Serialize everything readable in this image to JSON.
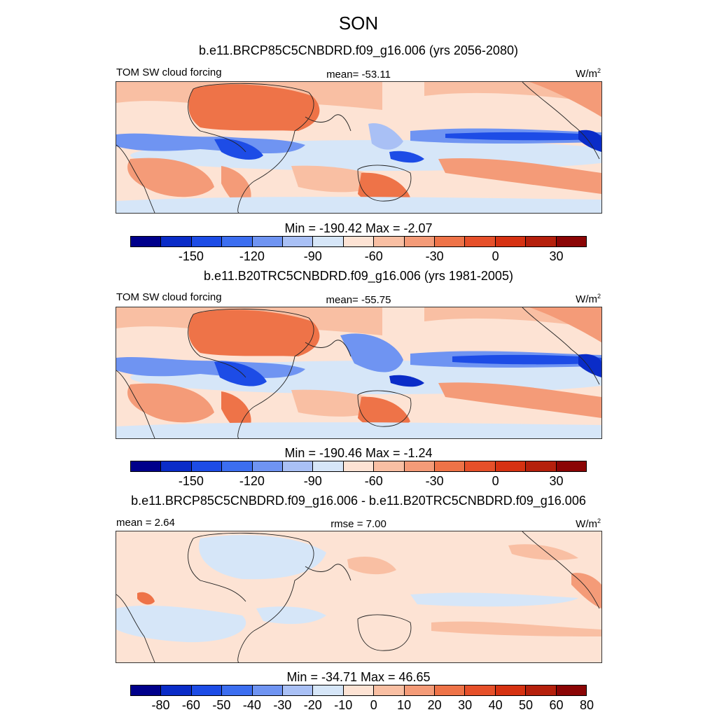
{
  "page_title": "SON",
  "panels": [
    {
      "title": "b.e11.BRCP85C5CNBDRD.f09_g16.006 (yrs 2056-2080)",
      "left_label": "TOM SW cloud forcing",
      "center_label": "mean= -53.11",
      "units": "W/m",
      "units_sup": "2",
      "minmax": "Min = -190.42 Max =  -2.07",
      "ticks": [
        "-150",
        "-120",
        "-90",
        "-60",
        "-30",
        "0",
        "30"
      ]
    },
    {
      "title": "b.e11.B20TRC5CNBDRD.f09_g16.006 (yrs 1981-2005)",
      "left_label": "TOM SW cloud forcing",
      "center_label": "mean= -55.75",
      "units": "W/m",
      "units_sup": "2",
      "minmax": "Min = -190.46 Max =  -1.24",
      "ticks": [
        "-150",
        "-120",
        "-90",
        "-60",
        "-30",
        "0",
        "30"
      ]
    },
    {
      "title": "b.e11.BRCP85C5CNBDRD.f09_g16.006 - b.e11.B20TRC5CNBDRD.f09_g16.006",
      "left_label": "mean =   2.64",
      "center_label": "rmse =   7.00",
      "units": "W/m",
      "units_sup": "2",
      "minmax": "Min = -34.71 Max =  46.65",
      "ticks": [
        "-80",
        "-60",
        "-50",
        "-40",
        "-30",
        "-20",
        "-10",
        "0",
        "10",
        "20",
        "30",
        "40",
        "50",
        "60",
        "80"
      ]
    }
  ],
  "colorbar_colors": [
    "#00008b",
    "#0a2cc8",
    "#1d4ce6",
    "#3c6ef0",
    "#6f94f2",
    "#a9c0f5",
    "#d6e6f8",
    "#fde3d4",
    "#f9bfa3",
    "#f49b78",
    "#ee7348",
    "#e6502a",
    "#d63212",
    "#b5200c",
    "#8b0505"
  ],
  "chart_data": [
    {
      "type": "heatmap",
      "title": "b.e11.BRCP85C5CNBDRD.f09_g16.006 (yrs 2056-2080)",
      "variable": "TOM SW cloud forcing",
      "units": "W/m2",
      "mean": -53.11,
      "min": -190.42,
      "max": -2.07,
      "colorbar_ticks": [
        -150,
        -120,
        -90,
        -60,
        -30,
        0,
        30
      ]
    },
    {
      "type": "heatmap",
      "title": "b.e11.B20TRC5CNBDRD.f09_g16.006 (yrs 1981-2005)",
      "variable": "TOM SW cloud forcing",
      "units": "W/m2",
      "mean": -55.75,
      "min": -190.46,
      "max": -1.24,
      "colorbar_ticks": [
        -150,
        -120,
        -90,
        -60,
        -30,
        0,
        30
      ]
    },
    {
      "type": "heatmap",
      "title": "b.e11.BRCP85C5CNBDRD.f09_g16.006 - b.e11.B20TRC5CNBDRD.f09_g16.006",
      "units": "W/m2",
      "mean": 2.64,
      "rmse": 7.0,
      "min": -34.71,
      "max": 46.65,
      "colorbar_ticks": [
        -80,
        -60,
        -50,
        -40,
        -30,
        -20,
        -10,
        0,
        10,
        20,
        30,
        40,
        50,
        60,
        80
      ]
    }
  ]
}
